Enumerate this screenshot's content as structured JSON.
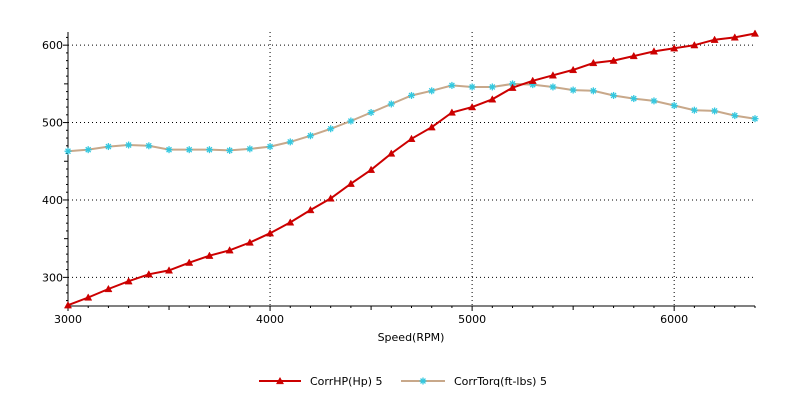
{
  "chart_data": {
    "type": "line",
    "title": "",
    "xlabel": "Speed(RPM)",
    "ylabel": "",
    "xlim": [
      3000,
      6400
    ],
    "ylim": [
      263,
      617
    ],
    "x_ticks": [
      3000,
      4000,
      5000,
      6000
    ],
    "x_tick_labels": [
      "3000",
      "4000",
      "5000",
      "6000"
    ],
    "y_ticks": [
      300,
      400,
      500,
      600
    ],
    "y_tick_labels": [
      "300",
      "400",
      "500",
      "600"
    ],
    "grid": true,
    "legend_position": "bottom",
    "x": [
      3000,
      3100,
      3200,
      3300,
      3400,
      3500,
      3600,
      3700,
      3800,
      3900,
      4000,
      4100,
      4200,
      4300,
      4400,
      4500,
      4600,
      4700,
      4800,
      4900,
      5000,
      5100,
      5200,
      5300,
      5400,
      5500,
      5600,
      5700,
      5800,
      5900,
      6000,
      6100,
      6200,
      6300,
      6400
    ],
    "series": [
      {
        "name": "CorrHP(Hp)  5",
        "color": "#cc0000",
        "marker": "triangle",
        "values": [
          264,
          274,
          285,
          295,
          304,
          309,
          319,
          328,
          335,
          345,
          357,
          371,
          387,
          402,
          421,
          439,
          460,
          479,
          494,
          513,
          520,
          530,
          545,
          554,
          561,
          568,
          577,
          580,
          586,
          592,
          596,
          600,
          607,
          610,
          615
        ]
      },
      {
        "name": "CorrTorq(ft-lbs)  5",
        "color": "#c8a88a",
        "marker_color": "#33c8e0",
        "marker": "star",
        "values": [
          463,
          465,
          469,
          471,
          470,
          465,
          465,
          465,
          464,
          466,
          469,
          475,
          483,
          492,
          502,
          513,
          524,
          535,
          541,
          548,
          546,
          546,
          550,
          549,
          546,
          542,
          541,
          535,
          531,
          528,
          522,
          516,
          515,
          509,
          505
        ]
      }
    ]
  }
}
